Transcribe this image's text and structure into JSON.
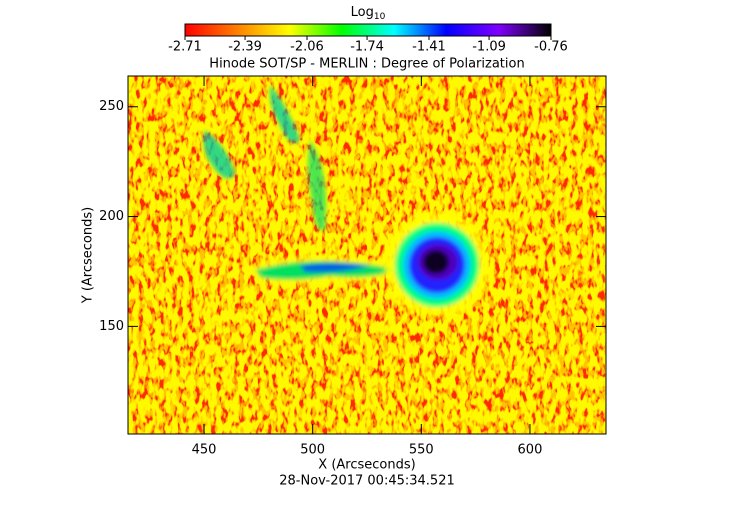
{
  "chart_data": {
    "type": "heatmap",
    "title": "Hinode SOT/SP - MERLIN : Degree of Polarization",
    "xlabel": "X (Arcseconds)",
    "ylabel": "Y (Arcseconds)",
    "footer": "28-Nov-2017 00:45:34.521",
    "xlim": [
      415,
      635
    ],
    "xticks": [
      450,
      500,
      550,
      600
    ],
    "ylim": [
      101,
      264
    ],
    "yticks": [
      150,
      200,
      250
    ],
    "colorbar": {
      "label": "Log",
      "label_subscript": "10",
      "lim": [
        -2.71,
        -0.76
      ],
      "ticks": [
        -2.71,
        -2.39,
        -2.06,
        -1.74,
        -1.41,
        -1.09,
        -0.76
      ],
      "colors": [
        "#ff0000",
        "#ff8000",
        "#ffff00",
        "#00ff00",
        "#00ffff",
        "#0000ff",
        "#8000ff",
        "#000000"
      ]
    }
  }
}
